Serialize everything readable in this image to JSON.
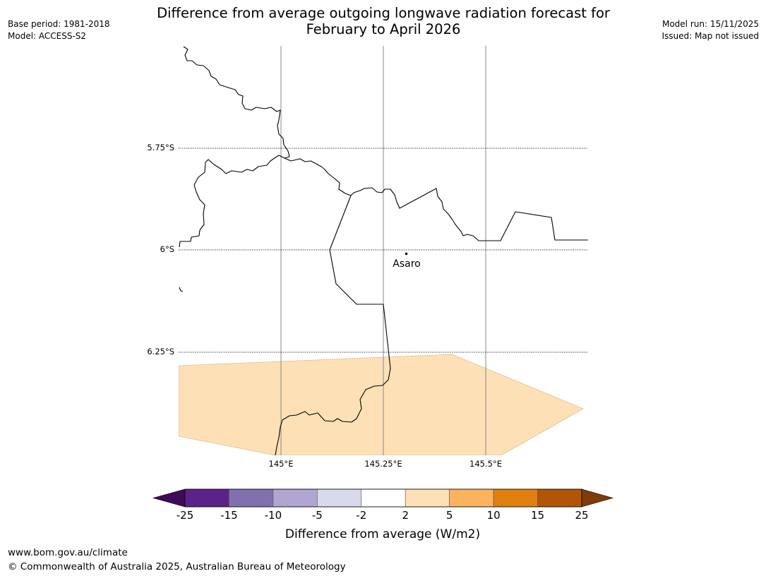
{
  "header": {
    "title_line1": "Difference from average outgoing longwave radiation forecast for",
    "title_line2": "February to April 2026",
    "base_period": "Base period: 1981-2018",
    "model": "Model: ACCESS-S2",
    "model_run": "Model run: 15/11/2025",
    "issued": "Issued: Map not issued"
  },
  "map": {
    "latitude_labels": [
      "5.75°S",
      "6°S",
      "6.25°S"
    ],
    "longitude_labels": [
      "145°E",
      "145.25°E",
      "145.5°E"
    ],
    "place": {
      "name": "Asaro"
    },
    "anomaly_fill_color": "#fde0b6",
    "anomaly_category": "2 to 5"
  },
  "colorbar": {
    "title": "Difference from average (W/m2)",
    "ticks": [
      "-25",
      "-15",
      "-10",
      "-5",
      "-2",
      "2",
      "5",
      "10",
      "15",
      "25"
    ],
    "colors": [
      "#3f0a56",
      "#5a2389",
      "#8170ad",
      "#b1a6d1",
      "#d9d9ec",
      "#ffffff",
      "#fde0b6",
      "#fbb35e",
      "#e1800f",
      "#b25507",
      "#7f3b08"
    ]
  },
  "footer": {
    "website": "www.bom.gov.au/climate",
    "copyright": "© Commonwealth of Australia 2025, Australian Bureau of Meteorology"
  }
}
